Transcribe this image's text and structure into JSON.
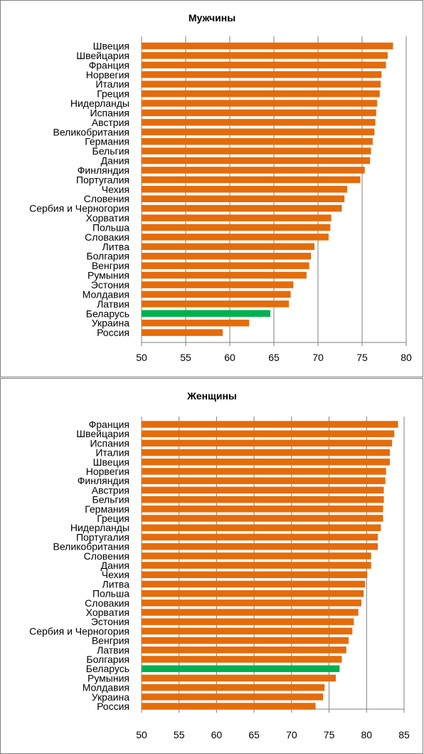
{
  "chart_data": [
    {
      "type": "bar",
      "orientation": "horizontal",
      "title": "Мужчины",
      "xlim": [
        50,
        80
      ],
      "xticks": [
        50,
        55,
        60,
        65,
        70,
        75,
        80
      ],
      "grid": "vertical",
      "default_color": "#E46C0A",
      "highlight_color": "#00B050",
      "highlight": "Беларусь",
      "categories": [
        "Швеция",
        "Швейцария",
        "Франция",
        "Норвегия",
        "Италия",
        "Греция",
        "Нидерланды",
        "Испания",
        "Австрия",
        "Великобритания",
        "Германия",
        "Бельгия",
        "Дания",
        "Финляндия",
        "Португалия",
        "Чехия",
        "Словения",
        "Сербия и Черногория",
        "Хорватия",
        "Польша",
        "Словакия",
        "Литва",
        "Болгария",
        "Венгрия",
        "Румыния",
        "Эстония",
        "Молдавия",
        "Латвия",
        "Беларусь",
        "Украина",
        "Россия"
      ],
      "values": [
        78.5,
        77.9,
        77.7,
        77.2,
        77.1,
        77.0,
        76.7,
        76.6,
        76.5,
        76.4,
        76.2,
        76.0,
        75.9,
        75.3,
        74.8,
        73.3,
        73.0,
        72.7,
        71.5,
        71.4,
        71.2,
        69.6,
        69.2,
        69.0,
        68.7,
        67.2,
        66.9,
        66.7,
        64.6,
        62.2,
        59.2
      ]
    },
    {
      "type": "bar",
      "orientation": "horizontal",
      "title": "Женщины",
      "xlim": [
        50,
        85
      ],
      "xticks": [
        50,
        55,
        60,
        65,
        70,
        75,
        80,
        85
      ],
      "grid": "vertical",
      "default_color": "#E46C0A",
      "highlight_color": "#00B050",
      "highlight": "Беларусь",
      "categories": [
        "Франция",
        "Швейцария",
        "Испания",
        "Италия",
        "Швеция",
        "Норвегия",
        "Финляндия",
        "Австрия",
        "Бельгия",
        "Германия",
        "Греция",
        "Нидерланды",
        "Португалия",
        "Великобритания",
        "Словения",
        "Дания",
        "Чехия",
        "Литва",
        "Польша",
        "Словакия",
        "Хорватия",
        "Эстония",
        "Сербия и Черногория",
        "Венгрия",
        "Латвия",
        "Болгария",
        "Беларусь",
        "Румыния",
        "Молдавия",
        "Украина",
        "Россия"
      ],
      "values": [
        84.2,
        83.7,
        83.4,
        83.1,
        83.1,
        82.6,
        82.5,
        82.3,
        82.3,
        82.2,
        82.2,
        81.9,
        81.5,
        81.5,
        80.6,
        80.6,
        80.1,
        79.8,
        79.6,
        79.3,
        78.9,
        78.3,
        78.1,
        77.6,
        77.3,
        76.7,
        76.4,
        75.9,
        74.4,
        74.2,
        73.2
      ]
    }
  ]
}
